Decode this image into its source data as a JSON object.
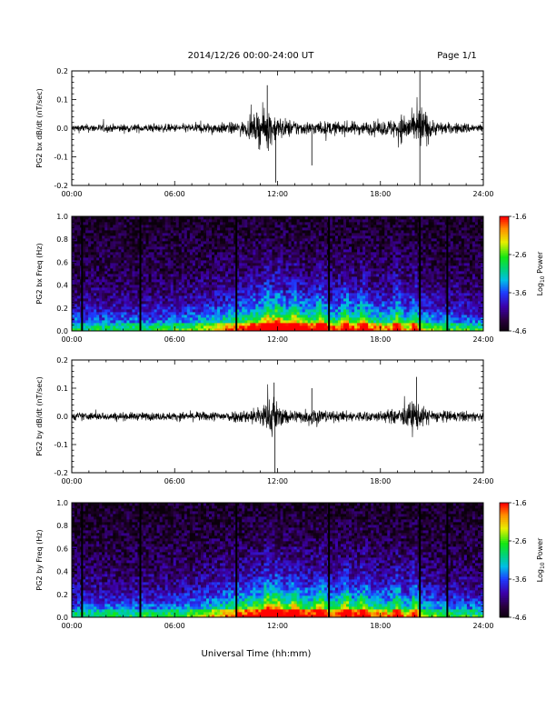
{
  "header": {
    "title": "2014/12/26  00:00-24:00 UT",
    "page": "Page 1/1"
  },
  "xaxis_title": "Universal Time (hh:mm)",
  "colorbar": {
    "label_prefix": "Log",
    "label_sub": "10",
    "label_suffix": " Power",
    "range": [
      -4.6,
      -1.6
    ],
    "ticks": [
      "-1.6",
      "-2.6",
      "-3.6",
      "-4.6"
    ]
  },
  "chart_data": [
    {
      "type": "line",
      "ylabel": "PG2 bx dB/dt (nT/sec)",
      "xlim": [
        0,
        24
      ],
      "ylim": [
        -0.2,
        0.2
      ],
      "xticks": [
        "00:00",
        "06:00",
        "12:00",
        "18:00",
        "24:00"
      ],
      "yticks": [
        "0.2",
        "0.1",
        "0.0",
        "-0.1",
        "-0.2"
      ],
      "x": [
        0,
        1,
        2,
        3,
        4,
        5,
        6,
        7,
        8,
        9,
        10,
        10.5,
        11,
        11.5,
        11.9,
        12,
        12.5,
        13,
        13.5,
        14,
        15,
        16,
        17,
        18,
        19,
        19.5,
        20,
        20.3,
        21,
        22,
        23,
        24
      ],
      "y_envelope": [
        0.03,
        0.03,
        0.03,
        0.03,
        0.03,
        0.03,
        0.03,
        0.035,
        0.04,
        0.04,
        0.05,
        0.08,
        0.14,
        0.15,
        0.1,
        0.09,
        0.07,
        0.06,
        0.05,
        0.05,
        0.05,
        0.05,
        0.05,
        0.05,
        0.08,
        0.13,
        0.09,
        0.2,
        0.06,
        0.04,
        0.04,
        0.03
      ]
    },
    {
      "type": "heatmap",
      "ylabel": "PG2 bx Freq (Hz)",
      "xlim": [
        0,
        24
      ],
      "ylim": [
        0.0,
        1.0
      ],
      "xticks": [
        "00:00",
        "06:00",
        "12:00",
        "18:00",
        "24:00"
      ],
      "yticks": [
        "1.0",
        "0.8",
        "0.6",
        "0.4",
        "0.2",
        "0.0"
      ],
      "value_range": [
        -4.6,
        -1.6
      ],
      "gap_times": [
        0.6,
        4.0,
        9.6,
        15.0,
        20.3,
        21.9
      ]
    },
    {
      "type": "line",
      "ylabel": "PG2 by dB/dt (nT/sec)",
      "xlim": [
        0,
        24
      ],
      "ylim": [
        -0.2,
        0.2
      ],
      "xticks": [
        "00:00",
        "06:00",
        "12:00",
        "18:00",
        "24:00"
      ],
      "yticks": [
        "0.2",
        "0.1",
        "0.0",
        "-0.1",
        "-0.2"
      ],
      "x": [
        0,
        1,
        2,
        3,
        4,
        5,
        6,
        7,
        8,
        9,
        10,
        10.5,
        11,
        11.5,
        11.8,
        12,
        12.5,
        13,
        13.5,
        14,
        15,
        16,
        17,
        18,
        19,
        19.5,
        20,
        20.3,
        21,
        22,
        23,
        24
      ],
      "y_envelope": [
        0.03,
        0.03,
        0.03,
        0.03,
        0.03,
        0.03,
        0.03,
        0.035,
        0.035,
        0.04,
        0.05,
        0.06,
        0.09,
        0.12,
        0.2,
        0.08,
        0.06,
        0.05,
        0.05,
        0.08,
        0.04,
        0.04,
        0.04,
        0.04,
        0.06,
        0.08,
        0.14,
        0.08,
        0.05,
        0.04,
        0.04,
        0.03
      ]
    },
    {
      "type": "heatmap",
      "ylabel": "PG2 by Freq (Hz)",
      "xlim": [
        0,
        24
      ],
      "ylim": [
        0.0,
        1.0
      ],
      "xticks": [
        "00:00",
        "06:00",
        "12:00",
        "18:00",
        "24:00"
      ],
      "yticks": [
        "1.0",
        "0.8",
        "0.6",
        "0.4",
        "0.2",
        "0.0"
      ],
      "value_range": [
        -4.6,
        -1.6
      ],
      "gap_times": [
        0.6,
        4.0,
        9.6,
        15.0,
        20.3,
        21.9
      ]
    }
  ]
}
